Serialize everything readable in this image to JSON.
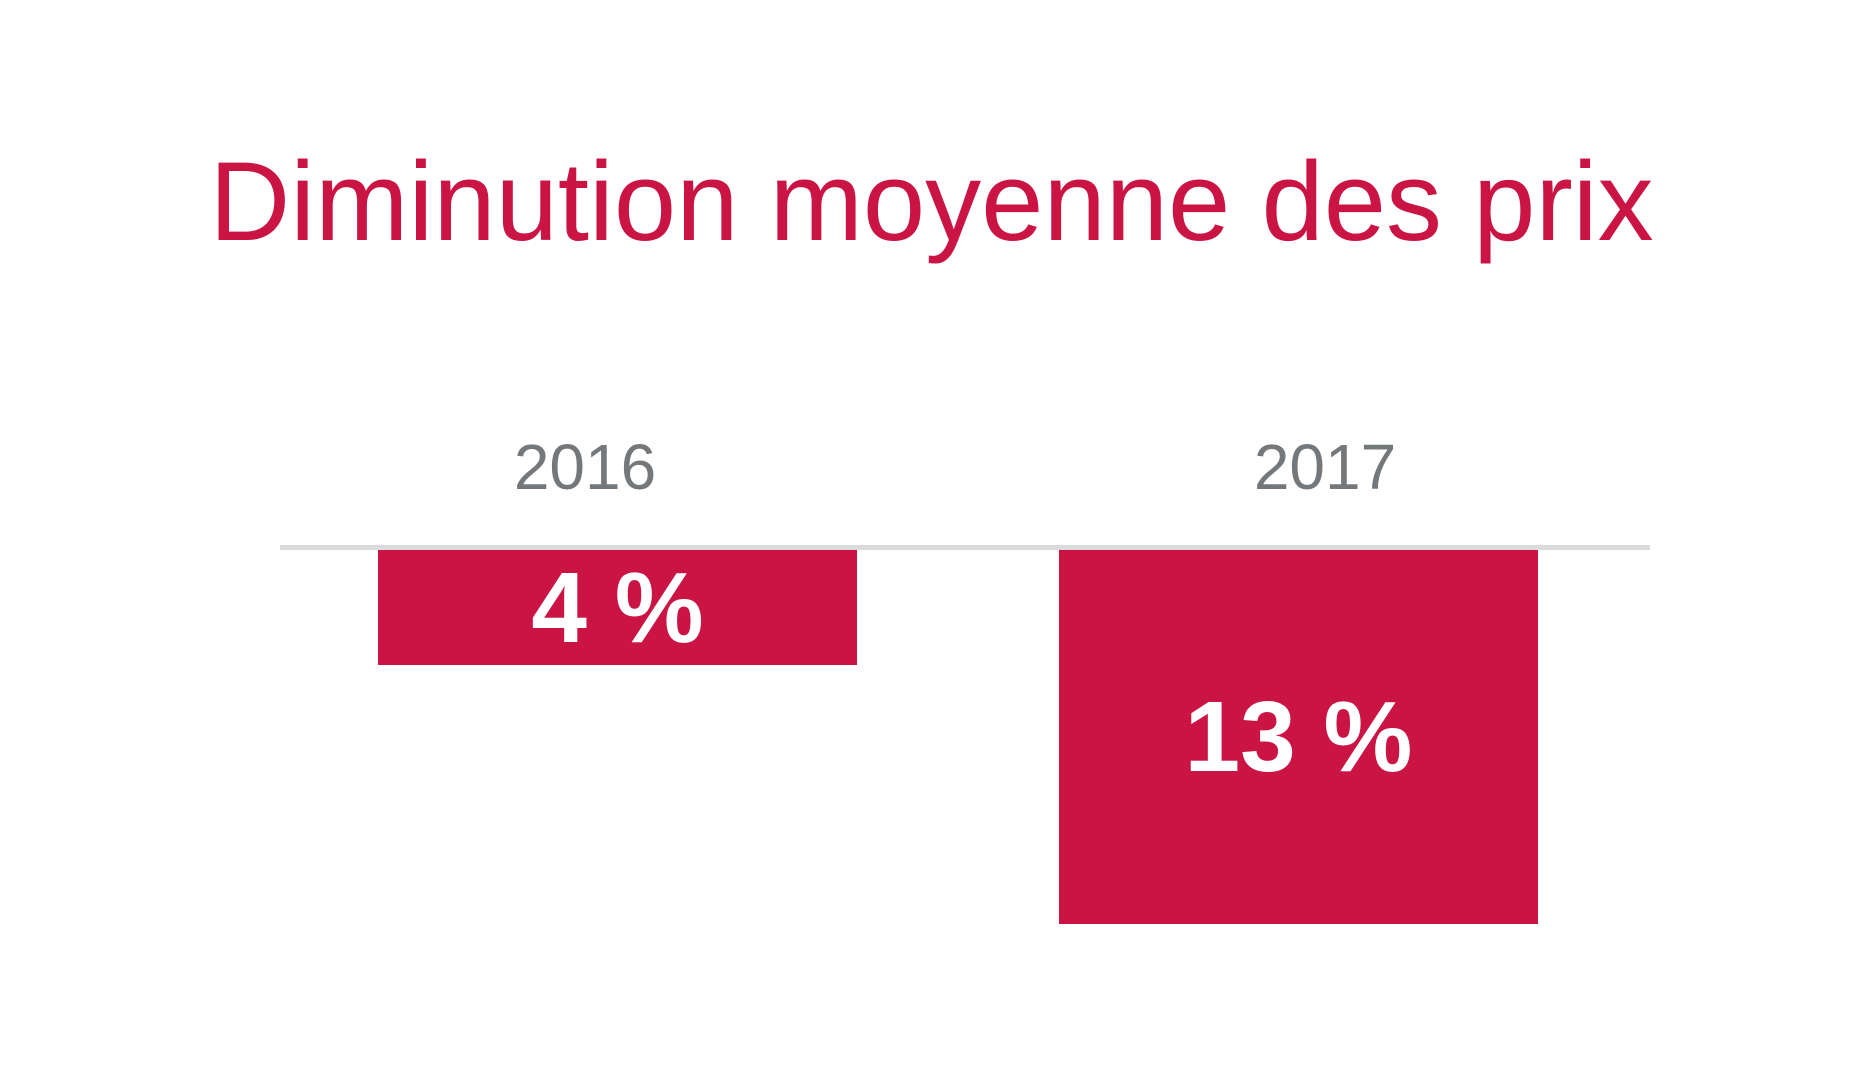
{
  "title": {
    "text": "Diminution moyenne des prix"
  },
  "chart_data": {
    "type": "bar",
    "title": "Diminution moyenne des prix",
    "categories": [
      "2016",
      "2017"
    ],
    "values": [
      -4,
      -13
    ],
    "bar_labels": [
      "4 %",
      "13 %"
    ],
    "unit": "%",
    "baseline_value": 0,
    "orientation": "columns-extending-downward-from-baseline",
    "grid": false,
    "legend": false,
    "axis": {
      "baseline_line_visible": true,
      "ticks_visible": false
    },
    "layout_hints": {
      "pixels_per_percent": 28.8,
      "bars_start_at_baseline": true
    },
    "colors": {
      "bar": "#CA1444",
      "title_text": "#CA1444",
      "category_label_text": "#75787B",
      "baseline_line": "#DBDBDD",
      "bar_label_text": "#FFFFFF",
      "background": "#FFFFFF"
    }
  }
}
